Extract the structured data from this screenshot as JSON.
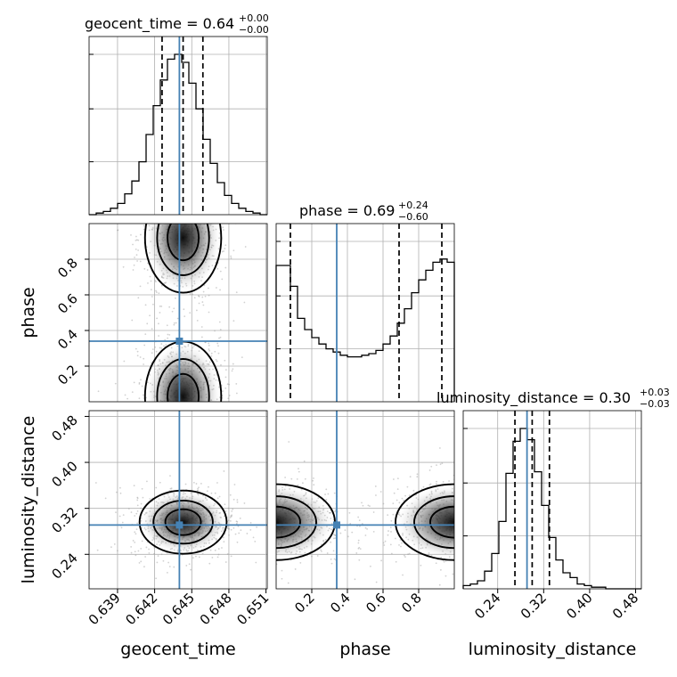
{
  "chart_data": {
    "type": "corner",
    "parameters": [
      "geocent_time",
      "phase",
      "luminosity_distance"
    ],
    "titles": [
      {
        "param": "geocent_time",
        "label": "geocent_time",
        "value": "0.64",
        "upper": "+0.00",
        "lower": "−0.00"
      },
      {
        "param": "phase",
        "label": "phase",
        "value": "0.69",
        "upper": "+0.24",
        "lower": "−0.60"
      },
      {
        "param": "luminosity_distance",
        "label": "luminosity_distance",
        "value": "0.30",
        "upper": "+0.03",
        "lower": "−0.03"
      }
    ],
    "ranges": {
      "geocent_time": [
        0.6367,
        0.6511
      ],
      "phase": [
        0.0,
        1.0
      ],
      "luminosity_distance": [
        0.18,
        0.49
      ]
    },
    "ticks": {
      "geocent_time": [
        {
          "v": 0.639,
          "label": "0.639"
        },
        {
          "v": 0.642,
          "label": "0.642"
        },
        {
          "v": 0.645,
          "label": "0.645"
        },
        {
          "v": 0.648,
          "label": "0.648"
        },
        {
          "v": 0.651,
          "label": "0.651"
        }
      ],
      "phase": [
        {
          "v": 0.2,
          "label": "0.2"
        },
        {
          "v": 0.4,
          "label": "0.4"
        },
        {
          "v": 0.6,
          "label": "0.6"
        },
        {
          "v": 0.8,
          "label": "0.8"
        }
      ],
      "phase_y": [
        {
          "v": 0.2,
          "label": "0.2"
        },
        {
          "v": 0.4,
          "label": "0.4"
        },
        {
          "v": 0.6,
          "label": "0.6"
        },
        {
          "v": 0.8,
          "label": "0.8"
        }
      ],
      "luminosity_distance": [
        {
          "v": 0.24,
          "label": "0.24"
        },
        {
          "v": 0.32,
          "label": "0.32"
        },
        {
          "v": 0.4,
          "label": "0.40"
        },
        {
          "v": 0.48,
          "label": "0.48"
        }
      ]
    },
    "truths": {
      "geocent_time": 0.644,
      "phase": 0.34,
      "luminosity_distance": 0.291
    },
    "quantiles": {
      "geocent_time": [
        0.6426,
        0.6443,
        0.6459
      ],
      "phase": [
        0.08,
        0.69,
        0.93
      ],
      "luminosity_distance": [
        0.27,
        0.3,
        0.33
      ]
    },
    "histograms": {
      "geocent_time": {
        "x0": 0.6367,
        "x1": 0.6511,
        "counts": [
          0,
          0.01,
          0.02,
          0.04,
          0.07,
          0.13,
          0.21,
          0.33,
          0.5,
          0.68,
          0.84,
          0.97,
          1.0,
          0.95,
          0.82,
          0.66,
          0.47,
          0.32,
          0.2,
          0.12,
          0.07,
          0.04,
          0.02,
          0.01,
          0
        ]
      },
      "phase": {
        "x0": 0.0,
        "x1": 1.0,
        "counts": [
          0.85,
          0.85,
          0.72,
          0.52,
          0.45,
          0.4,
          0.36,
          0.33,
          0.31,
          0.29,
          0.28,
          0.28,
          0.29,
          0.3,
          0.32,
          0.36,
          0.41,
          0.49,
          0.58,
          0.68,
          0.76,
          0.82,
          0.87,
          0.89,
          0.87
        ]
      },
      "luminosity_distance": {
        "x0": 0.18,
        "x1": 0.49,
        "counts": [
          0.02,
          0.03,
          0.05,
          0.11,
          0.22,
          0.42,
          0.72,
          0.92,
          1.0,
          0.93,
          0.73,
          0.52,
          0.32,
          0.18,
          0.1,
          0.07,
          0.03,
          0.02,
          0.01,
          0.01,
          0.0,
          0.0,
          0.0,
          0.0,
          0.0
        ]
      }
    },
    "histogram_max_ticks": [
      0.33,
      0.66,
      1.0
    ],
    "layout": "lower-triangle 3x3",
    "grid": true
  }
}
